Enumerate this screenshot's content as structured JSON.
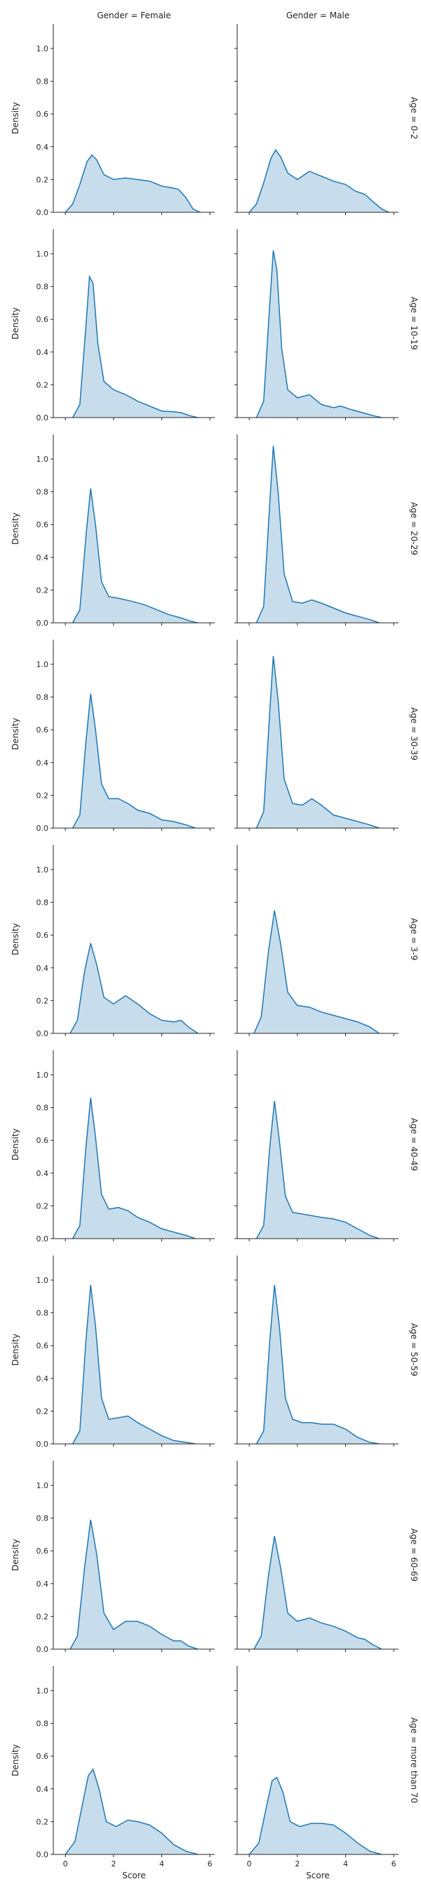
{
  "chart_data": {
    "type": "area",
    "kind": "kde-facet-grid",
    "xlabel": "Score",
    "ylabel": "Density",
    "xlim": [
      -0.5,
      6.2
    ],
    "ylim": [
      0,
      1.15
    ],
    "xticks": [
      0,
      2,
      4,
      6
    ],
    "yticks": [
      0.0,
      0.2,
      0.4,
      0.6,
      0.8,
      1.0
    ],
    "col_titles": [
      "Gender = Female",
      "Gender = Male"
    ],
    "row_titles": [
      "Age = 0-2",
      "Age = 10-19",
      "Age = 20-29",
      "Age = 30-39",
      "Age = 3-9",
      "Age = 40-49",
      "Age = 50-59",
      "Age = 60-69",
      "Age = more than 70"
    ],
    "color": "#1f77b4",
    "panels": [
      {
        "row": "Age = 0-2",
        "col": "Gender = Female",
        "x": [
          0.0,
          0.3,
          0.6,
          0.9,
          1.1,
          1.3,
          1.6,
          2.0,
          2.5,
          3.0,
          3.5,
          4.0,
          4.4,
          4.7,
          5.0,
          5.3,
          5.6
        ],
        "y": [
          0.0,
          0.05,
          0.17,
          0.31,
          0.35,
          0.32,
          0.23,
          0.2,
          0.21,
          0.2,
          0.19,
          0.16,
          0.15,
          0.14,
          0.09,
          0.02,
          0.0
        ]
      },
      {
        "row": "Age = 0-2",
        "col": "Gender = Male",
        "x": [
          0.0,
          0.3,
          0.6,
          0.9,
          1.1,
          1.3,
          1.6,
          2.0,
          2.5,
          3.0,
          3.5,
          4.0,
          4.4,
          4.8,
          5.1,
          5.5,
          5.8
        ],
        "y": [
          0.0,
          0.05,
          0.18,
          0.33,
          0.38,
          0.34,
          0.24,
          0.2,
          0.25,
          0.22,
          0.19,
          0.17,
          0.13,
          0.11,
          0.07,
          0.02,
          0.0
        ]
      },
      {
        "row": "Age = 10-19",
        "col": "Gender = Female",
        "x": [
          0.3,
          0.6,
          0.85,
          1.0,
          1.15,
          1.35,
          1.6,
          2.0,
          2.5,
          3.0,
          3.5,
          4.0,
          4.5,
          4.8,
          5.2,
          5.5
        ],
        "y": [
          0.0,
          0.08,
          0.55,
          0.86,
          0.82,
          0.45,
          0.22,
          0.17,
          0.14,
          0.1,
          0.07,
          0.04,
          0.035,
          0.03,
          0.01,
          0.0
        ]
      },
      {
        "row": "Age = 10-19",
        "col": "Gender = Male",
        "x": [
          0.3,
          0.6,
          0.85,
          1.0,
          1.15,
          1.35,
          1.6,
          2.0,
          2.5,
          3.0,
          3.5,
          3.8,
          4.2,
          4.7,
          5.2,
          5.5
        ],
        "y": [
          0.0,
          0.1,
          0.68,
          1.02,
          0.9,
          0.42,
          0.17,
          0.12,
          0.14,
          0.08,
          0.06,
          0.07,
          0.05,
          0.03,
          0.01,
          0.0
        ]
      },
      {
        "row": "Age = 20-29",
        "col": "Gender = Female",
        "x": [
          0.3,
          0.6,
          0.85,
          1.05,
          1.25,
          1.5,
          1.8,
          2.2,
          2.8,
          3.3,
          3.8,
          4.3,
          4.8,
          5.2,
          5.5
        ],
        "y": [
          0.0,
          0.08,
          0.52,
          0.82,
          0.6,
          0.25,
          0.16,
          0.15,
          0.13,
          0.11,
          0.08,
          0.05,
          0.03,
          0.01,
          0.0
        ]
      },
      {
        "row": "Age = 20-29",
        "col": "Gender = Male",
        "x": [
          0.3,
          0.6,
          0.85,
          1.0,
          1.2,
          1.45,
          1.8,
          2.2,
          2.6,
          3.0,
          3.5,
          4.0,
          4.5,
          5.0,
          5.4
        ],
        "y": [
          0.0,
          0.1,
          0.72,
          1.08,
          0.8,
          0.3,
          0.13,
          0.12,
          0.14,
          0.12,
          0.09,
          0.06,
          0.04,
          0.02,
          0.0
        ]
      },
      {
        "row": "Age = 30-39",
        "col": "Gender = Female",
        "x": [
          0.3,
          0.6,
          0.85,
          1.05,
          1.25,
          1.5,
          1.8,
          2.2,
          2.6,
          3.0,
          3.5,
          4.0,
          4.5,
          5.0,
          5.4
        ],
        "y": [
          0.0,
          0.08,
          0.52,
          0.82,
          0.6,
          0.27,
          0.18,
          0.18,
          0.15,
          0.11,
          0.09,
          0.05,
          0.04,
          0.02,
          0.0
        ]
      },
      {
        "row": "Age = 30-39",
        "col": "Gender = Male",
        "x": [
          0.3,
          0.6,
          0.85,
          1.0,
          1.2,
          1.45,
          1.8,
          2.2,
          2.6,
          3.0,
          3.5,
          4.0,
          4.5,
          5.0,
          5.4
        ],
        "y": [
          0.0,
          0.1,
          0.7,
          1.05,
          0.78,
          0.3,
          0.15,
          0.14,
          0.18,
          0.14,
          0.08,
          0.06,
          0.04,
          0.02,
          0.0
        ]
      },
      {
        "row": "Age = 3-9",
        "col": "Gender = Female",
        "x": [
          0.2,
          0.5,
          0.8,
          1.05,
          1.3,
          1.6,
          2.0,
          2.5,
          3.0,
          3.5,
          4.0,
          4.5,
          4.8,
          5.1,
          5.5
        ],
        "y": [
          0.0,
          0.08,
          0.38,
          0.55,
          0.42,
          0.22,
          0.18,
          0.23,
          0.18,
          0.12,
          0.08,
          0.07,
          0.08,
          0.04,
          0.0
        ]
      },
      {
        "row": "Age = 3-9",
        "col": "Gender = Male",
        "x": [
          0.2,
          0.5,
          0.8,
          1.05,
          1.3,
          1.6,
          2.0,
          2.5,
          3.0,
          3.5,
          4.0,
          4.5,
          5.0,
          5.4
        ],
        "y": [
          0.0,
          0.1,
          0.5,
          0.75,
          0.55,
          0.25,
          0.17,
          0.16,
          0.13,
          0.11,
          0.09,
          0.07,
          0.04,
          0.0
        ]
      },
      {
        "row": "Age = 40-49",
        "col": "Gender = Female",
        "x": [
          0.3,
          0.6,
          0.85,
          1.05,
          1.25,
          1.5,
          1.8,
          2.2,
          2.6,
          3.0,
          3.5,
          4.0,
          4.5,
          5.0,
          5.4
        ],
        "y": [
          0.0,
          0.08,
          0.55,
          0.86,
          0.62,
          0.27,
          0.18,
          0.19,
          0.17,
          0.13,
          0.1,
          0.06,
          0.04,
          0.02,
          0.0
        ]
      },
      {
        "row": "Age = 40-49",
        "col": "Gender = Male",
        "x": [
          0.3,
          0.6,
          0.85,
          1.05,
          1.25,
          1.5,
          1.8,
          2.2,
          2.6,
          3.0,
          3.5,
          4.0,
          4.5,
          5.0,
          5.4
        ],
        "y": [
          0.0,
          0.08,
          0.55,
          0.84,
          0.6,
          0.26,
          0.16,
          0.15,
          0.14,
          0.13,
          0.12,
          0.1,
          0.06,
          0.02,
          0.0
        ]
      },
      {
        "row": "Age = 50-59",
        "col": "Gender = Female",
        "x": [
          0.3,
          0.6,
          0.85,
          1.05,
          1.25,
          1.5,
          1.8,
          2.2,
          2.6,
          3.0,
          3.5,
          4.0,
          4.5,
          5.0,
          5.4
        ],
        "y": [
          0.0,
          0.08,
          0.62,
          0.97,
          0.72,
          0.28,
          0.15,
          0.16,
          0.17,
          0.13,
          0.09,
          0.05,
          0.02,
          0.01,
          0.0
        ]
      },
      {
        "row": "Age = 50-59",
        "col": "Gender = Male",
        "x": [
          0.3,
          0.6,
          0.85,
          1.05,
          1.25,
          1.5,
          1.8,
          2.2,
          2.6,
          3.0,
          3.5,
          4.0,
          4.5,
          5.0,
          5.4
        ],
        "y": [
          0.0,
          0.08,
          0.62,
          0.97,
          0.72,
          0.28,
          0.15,
          0.13,
          0.13,
          0.12,
          0.12,
          0.09,
          0.04,
          0.01,
          0.0
        ]
      },
      {
        "row": "Age = 60-69",
        "col": "Gender = Female",
        "x": [
          0.2,
          0.5,
          0.8,
          1.05,
          1.3,
          1.6,
          2.0,
          2.5,
          3.0,
          3.5,
          4.0,
          4.5,
          4.8,
          5.1,
          5.5
        ],
        "y": [
          0.0,
          0.08,
          0.5,
          0.79,
          0.58,
          0.22,
          0.12,
          0.17,
          0.17,
          0.14,
          0.09,
          0.05,
          0.05,
          0.02,
          0.0
        ]
      },
      {
        "row": "Age = 60-69",
        "col": "Gender = Male",
        "x": [
          0.2,
          0.5,
          0.8,
          1.05,
          1.3,
          1.6,
          2.0,
          2.5,
          3.0,
          3.5,
          4.0,
          4.5,
          4.8,
          5.1,
          5.5
        ],
        "y": [
          0.0,
          0.08,
          0.45,
          0.69,
          0.5,
          0.22,
          0.17,
          0.19,
          0.16,
          0.14,
          0.11,
          0.07,
          0.06,
          0.03,
          0.0
        ]
      },
      {
        "row": "Age = more than 70",
        "col": "Gender = Female",
        "x": [
          0.0,
          0.4,
          0.7,
          0.95,
          1.15,
          1.4,
          1.7,
          2.1,
          2.6,
          3.0,
          3.5,
          4.0,
          4.5,
          5.0,
          5.5
        ],
        "y": [
          0.0,
          0.08,
          0.3,
          0.48,
          0.52,
          0.4,
          0.2,
          0.17,
          0.21,
          0.2,
          0.18,
          0.13,
          0.06,
          0.02,
          0.0
        ]
      },
      {
        "row": "Age = more than 70",
        "col": "Gender = Male",
        "x": [
          0.0,
          0.4,
          0.7,
          0.95,
          1.15,
          1.4,
          1.7,
          2.1,
          2.6,
          3.0,
          3.5,
          4.0,
          4.5,
          5.0,
          5.5
        ],
        "y": [
          0.0,
          0.07,
          0.28,
          0.45,
          0.47,
          0.38,
          0.2,
          0.17,
          0.19,
          0.19,
          0.18,
          0.13,
          0.07,
          0.02,
          0.0
        ]
      }
    ]
  }
}
